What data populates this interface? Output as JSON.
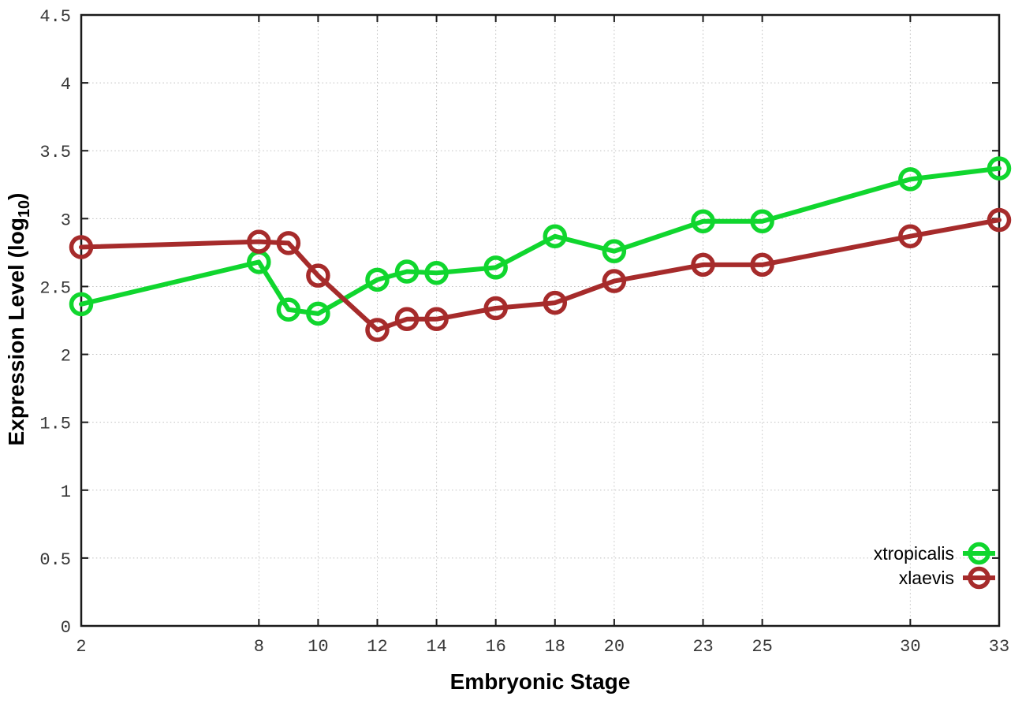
{
  "colors": {
    "background": "#ffffff",
    "axis": "#1a1a1a",
    "grid": "#c0c0c0",
    "tick_text": "#383838",
    "label_text": "#000000",
    "xtropicalis": "#10d62e",
    "xlaevis": "#a62b2b"
  },
  "chart_data": {
    "type": "line",
    "title": "",
    "xlabel": "Embryonic Stage",
    "ylabel": {
      "pre": "Expression Level (log",
      "sub": "10",
      "post": ")"
    },
    "xlim": [
      2,
      33
    ],
    "ylim": [
      0,
      4.5
    ],
    "grid": true,
    "legend_position": "bottom-right",
    "marker": "open-circle",
    "xtick_values": [
      2,
      8,
      10,
      12,
      14,
      16,
      18,
      20,
      23,
      25,
      30,
      33
    ],
    "xtick_labels": [
      "2",
      "8",
      "10",
      "12",
      "14",
      "16",
      "18",
      "20",
      "23",
      "25",
      "30",
      "33"
    ],
    "ytick_values": [
      0,
      0.5,
      1,
      1.5,
      2,
      2.5,
      3,
      3.5,
      4,
      4.5
    ],
    "ytick_labels": [
      "0",
      "0.5",
      "1",
      "1.5",
      "2",
      "2.5",
      "3",
      "3.5",
      "4",
      "4.5"
    ],
    "x": [
      2,
      8,
      9,
      10,
      12,
      13,
      14,
      16,
      18,
      20,
      23,
      25,
      30,
      33
    ],
    "series": [
      {
        "name": "xtropicalis",
        "color": "#10d62e",
        "values": [
          2.37,
          2.68,
          2.33,
          2.3,
          2.55,
          2.61,
          2.6,
          2.64,
          2.87,
          2.76,
          2.98,
          2.98,
          3.29,
          3.37
        ]
      },
      {
        "name": "xlaevis",
        "color": "#a62b2b",
        "values": [
          2.79,
          2.83,
          2.82,
          2.58,
          2.18,
          2.26,
          2.26,
          2.34,
          2.38,
          2.54,
          2.66,
          2.66,
          2.87,
          2.99
        ]
      }
    ]
  }
}
